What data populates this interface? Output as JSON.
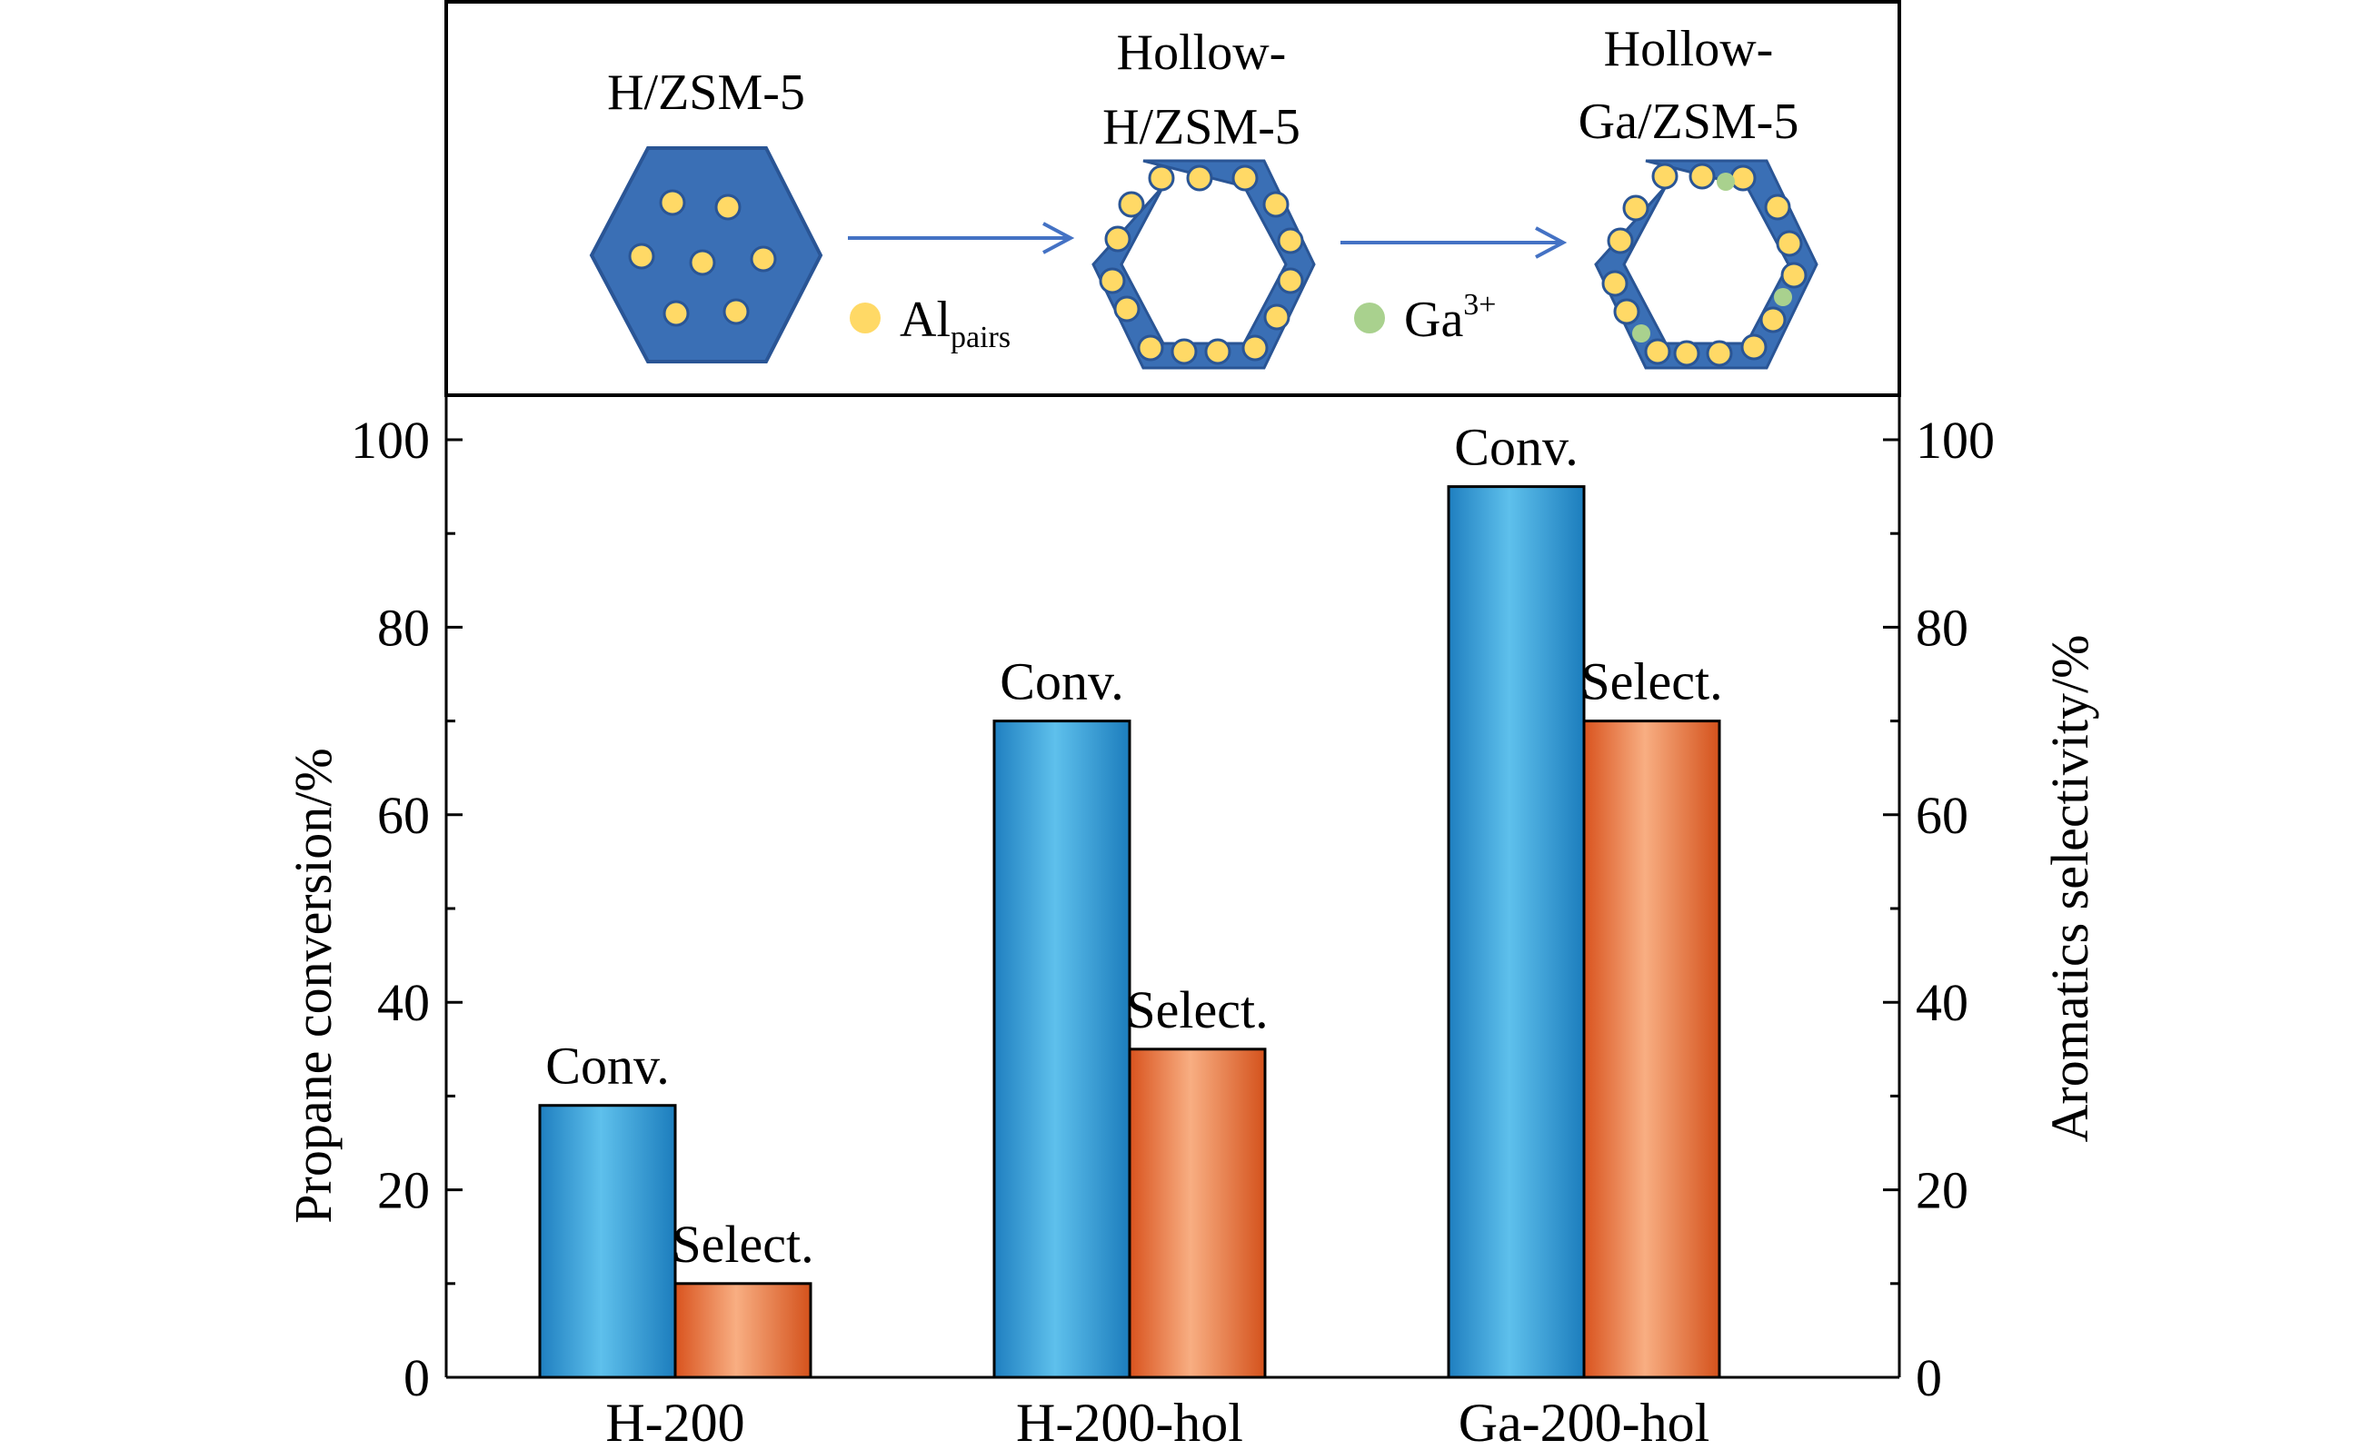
{
  "schematic": {
    "stages": [
      {
        "label_lines": [
          "H/ZSM-5"
        ]
      },
      {
        "label_lines": [
          "Hollow-",
          "H/ZSM-5"
        ]
      },
      {
        "label_lines": [
          "Hollow-",
          "Ga/ZSM-5"
        ]
      }
    ],
    "legend": [
      {
        "main": "Al",
        "sub": "pairs",
        "sup": "",
        "color": "#ffd966"
      },
      {
        "main": "Ga",
        "sub": "",
        "sup": "3+",
        "color": "#a9d18e"
      }
    ],
    "colors": {
      "crystal": "#3a6fb5",
      "crystal_edge": "#2a5595",
      "arrow": "#4472c4"
    }
  },
  "chart_data": {
    "type": "bar",
    "categories": [
      "H-200",
      "H-200-hol",
      "Ga-200-hol"
    ],
    "series": [
      {
        "name": "Conv.",
        "axis": "left",
        "values": [
          29,
          70,
          95
        ],
        "bar_labels": [
          "Conv.",
          "Conv.",
          "Conv."
        ],
        "color": "#3cabe0"
      },
      {
        "name": "Select.",
        "axis": "right",
        "values": [
          10,
          35,
          70
        ],
        "bar_labels": [
          "Select.",
          "Select.",
          "Select."
        ],
        "color": "#e8743b"
      }
    ],
    "ylabel_left": "Propane conversion/%",
    "ylabel_right": "Aromatics selectivity/%",
    "ylim": [
      0,
      105
    ],
    "yticks": [
      0,
      20,
      40,
      60,
      80,
      100
    ],
    "minor_step": 10,
    "grid": false
  }
}
